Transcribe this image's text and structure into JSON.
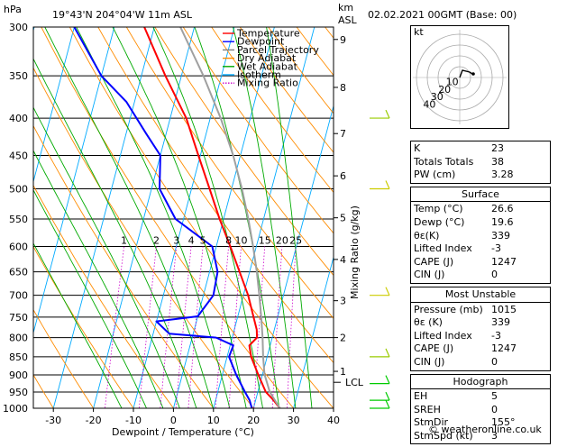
{
  "header": {
    "pressure_unit": "hPa",
    "location": "19°43'N  204°04'W  11m  ASL",
    "height_unit": "km",
    "height_unit2": "ASL",
    "datetime": "02.02.2021  00GMT  (Base: 00)"
  },
  "chart_data": {
    "type": "line",
    "xlabel": "Dewpoint / Temperature (°C)",
    "ylabel": "Mixing Ratio (g/kg)",
    "pressure_levels": [
      300,
      350,
      400,
      450,
      500,
      550,
      600,
      650,
      700,
      750,
      800,
      850,
      900,
      950,
      1000
    ],
    "x_ticks": [
      -30,
      -20,
      -10,
      0,
      10,
      20,
      30,
      40
    ],
    "xlim": [
      -35,
      40
    ],
    "skew": "skew-T log-p",
    "km_ticks": [
      {
        "km": "1",
        "p": 890
      },
      {
        "km": "2",
        "p": 800
      },
      {
        "km": "3",
        "p": 712
      },
      {
        "km": "4",
        "p": 625
      },
      {
        "km": "5",
        "p": 548
      },
      {
        "km": "6",
        "p": 480
      },
      {
        "km": "7",
        "p": 420
      },
      {
        "km": "8",
        "p": 363
      },
      {
        "km": "9",
        "p": 312
      }
    ],
    "lcl": {
      "label": "LCL",
      "p": 898
    },
    "mixing_ratio_labels": [
      "1",
      "2",
      "3",
      "4",
      "5",
      "8",
      "10",
      "15",
      "20",
      "25"
    ],
    "mixing_ratio_values": [
      1,
      2,
      3,
      4,
      5,
      8,
      10,
      15,
      20,
      25
    ],
    "legend": [
      "Temperature",
      "Dewpoint",
      "Parcel Trajectory",
      "Dry Adiabat",
      "Wet Adiabat",
      "Isotherm",
      "Mixing Ratio"
    ],
    "legend_colors": [
      "#ff0000",
      "#0000ff",
      "#808080",
      "#ff8c00",
      "#00aa00",
      "#00aaff",
      "#cc00cc"
    ],
    "legend_dash": [
      false,
      false,
      false,
      false,
      false,
      false,
      true
    ],
    "series": [
      {
        "name": "Temperature",
        "color": "#ff0000",
        "points": [
          [
            1000,
            26.6
          ],
          [
            975,
            24.5
          ],
          [
            950,
            22.0
          ],
          [
            900,
            19.0
          ],
          [
            850,
            16.0
          ],
          [
            820,
            14.8
          ],
          [
            800,
            16.2
          ],
          [
            780,
            15.6
          ],
          [
            750,
            14.0
          ],
          [
            700,
            11.2
          ],
          [
            650,
            7.5
          ],
          [
            600,
            3.5
          ],
          [
            550,
            -1.0
          ],
          [
            500,
            -5.5
          ],
          [
            450,
            -10.5
          ],
          [
            400,
            -16.0
          ],
          [
            350,
            -24.0
          ],
          [
            300,
            -32.5
          ]
        ]
      },
      {
        "name": "Dewpoint",
        "color": "#0000ff",
        "points": [
          [
            1000,
            19.6
          ],
          [
            975,
            18.5
          ],
          [
            950,
            16.8
          ],
          [
            900,
            13.5
          ],
          [
            850,
            10.5
          ],
          [
            820,
            10.8
          ],
          [
            800,
            6.0
          ],
          [
            790,
            -6.0
          ],
          [
            760,
            -10.0
          ],
          [
            748,
            0.0
          ],
          [
            700,
            2.5
          ],
          [
            650,
            2.0
          ],
          [
            600,
            -1.0
          ],
          [
            550,
            -12.0
          ],
          [
            500,
            -18.0
          ],
          [
            450,
            -20.0
          ],
          [
            420,
            -25.0
          ],
          [
            380,
            -32.0
          ],
          [
            350,
            -40.0
          ],
          [
            300,
            -50.0
          ]
        ]
      },
      {
        "name": "Parcel Trajectory",
        "color": "#a0a0a0",
        "points": [
          [
            1000,
            26.6
          ],
          [
            950,
            23.0
          ],
          [
            898,
            20.5
          ],
          [
            850,
            19.0
          ],
          [
            800,
            17.6
          ],
          [
            750,
            15.9
          ],
          [
            700,
            14.0
          ],
          [
            650,
            11.8
          ],
          [
            600,
            9.2
          ],
          [
            550,
            6.2
          ],
          [
            500,
            2.6
          ],
          [
            450,
            -1.8
          ],
          [
            400,
            -7.4
          ],
          [
            350,
            -14.5
          ],
          [
            300,
            -23.5
          ]
        ]
      }
    ],
    "wind_barbs": [
      {
        "p": 1000,
        "color": "#00cc00"
      },
      {
        "p": 975,
        "color": "#00cc00"
      },
      {
        "p": 925,
        "color": "#00cc00"
      },
      {
        "p": 850,
        "color": "#99cc00"
      },
      {
        "p": 700,
        "color": "#cccc00"
      },
      {
        "p": 500,
        "color": "#cccc00"
      },
      {
        "p": 400,
        "color": "#99cc00"
      }
    ]
  },
  "hodograph": {
    "unit": "kt",
    "ring_labels": [
      "10",
      "20",
      "30",
      "40"
    ]
  },
  "indices": {
    "general": [
      {
        "label": "K",
        "value": "23"
      },
      {
        "label": "Totals Totals",
        "value": "38"
      },
      {
        "label": "PW (cm)",
        "value": "3.28"
      }
    ],
    "surface": {
      "title": "Surface",
      "rows": [
        {
          "label": "Temp (°C)",
          "value": "26.6"
        },
        {
          "label": "Dewp (°C)",
          "value": "19.6"
        },
        {
          "label": "θε(K)",
          "value": "339"
        },
        {
          "label": "Lifted Index",
          "value": "-3"
        },
        {
          "label": "CAPE (J)",
          "value": "1247"
        },
        {
          "label": "CIN (J)",
          "value": "0"
        }
      ]
    },
    "most_unstable": {
      "title": "Most Unstable",
      "rows": [
        {
          "label": "Pressure (mb)",
          "value": "1015"
        },
        {
          "label": "θε (K)",
          "value": "339"
        },
        {
          "label": "Lifted Index",
          "value": "-3"
        },
        {
          "label": "CAPE (J)",
          "value": "1247"
        },
        {
          "label": "CIN (J)",
          "value": "0"
        }
      ]
    },
    "hodograph_box": {
      "title": "Hodograph",
      "rows": [
        {
          "label": "EH",
          "value": "5"
        },
        {
          "label": "SREH",
          "value": "0"
        },
        {
          "label": "StmDir",
          "value": "155°"
        },
        {
          "label": "StmSpd (kt)",
          "value": "3"
        }
      ]
    }
  },
  "footer": "© weatheronline.co.uk"
}
